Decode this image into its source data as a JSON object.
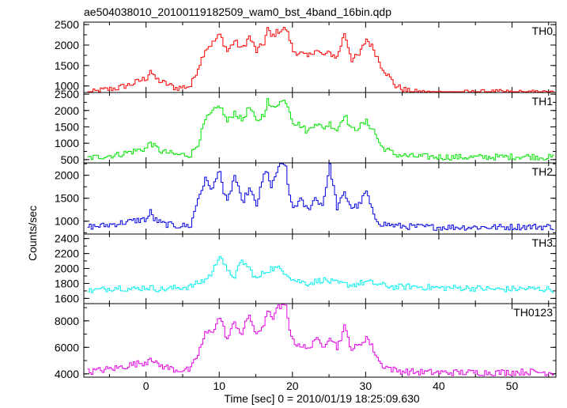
{
  "chart_data": {
    "type": "line",
    "title": "ae504038010_20100119182509_wam0_bst_4band_16bin.qdp",
    "xlabel": "Time [sec] 0 = 2010/01/19 18:25:09.630",
    "ylabel": "Counts/sec",
    "xlim": [
      -8.5,
      56
    ],
    "xticks": [
      0,
      10,
      20,
      30,
      40,
      50
    ],
    "grid": false,
    "panels": [
      {
        "name": "TH0",
        "color": "#ff0000",
        "ylim": [
          840,
          2560
        ],
        "yticks": [
          1000,
          1500,
          2000,
          2500
        ],
        "x": [
          -8,
          -6,
          -4,
          -2,
          0,
          0.5,
          1,
          2,
          4,
          6,
          7,
          8,
          9,
          10,
          10.5,
          11,
          12,
          13,
          14,
          15,
          16,
          16.5,
          17,
          18,
          19,
          19.5,
          20,
          21,
          22,
          23,
          24,
          25,
          26,
          27,
          28,
          29,
          30,
          31,
          32,
          34,
          36,
          40,
          44,
          48,
          52,
          55.5
        ],
        "y": [
          820,
          900,
          950,
          1050,
          1200,
          1400,
          1200,
          1100,
          950,
          1000,
          1450,
          1900,
          2050,
          2250,
          2050,
          1850,
          2100,
          1900,
          2200,
          1850,
          2050,
          2400,
          2200,
          2350,
          2400,
          2150,
          1850,
          1800,
          1700,
          1900,
          1750,
          1800,
          1700,
          2300,
          1650,
          1750,
          2150,
          1900,
          1500,
          1000,
          850,
          830,
          830,
          840,
          830,
          820
        ]
      },
      {
        "name": "TH1",
        "color": "#00e600",
        "ylim": [
          400,
          2550
        ],
        "yticks": [
          500,
          1000,
          1500,
          2000,
          2500
        ],
        "x": [
          -8,
          -6,
          -4,
          -2,
          0,
          0.5,
          1,
          2,
          4,
          6,
          7,
          8,
          9,
          10,
          10.5,
          11,
          12,
          13,
          14,
          15,
          16,
          16.5,
          17,
          18,
          19,
          19.5,
          20,
          21,
          22,
          23,
          24,
          25,
          26,
          27,
          28,
          29,
          30,
          31,
          32,
          34,
          36,
          40,
          44,
          48,
          52,
          55.5
        ],
        "y": [
          550,
          600,
          650,
          750,
          850,
          1050,
          900,
          750,
          650,
          650,
          1000,
          1700,
          1950,
          2150,
          1900,
          1650,
          1950,
          1700,
          2100,
          1650,
          1900,
          2300,
          2050,
          2250,
          2300,
          2000,
          1650,
          1550,
          1350,
          1650,
          1450,
          1600,
          1400,
          1900,
          1400,
          1500,
          1650,
          1400,
          900,
          650,
          600,
          580,
          570,
          580,
          600,
          560
        ]
      },
      {
        "name": "TH2",
        "color": "#0000e6",
        "ylim": [
          720,
          2270
        ],
        "yticks": [
          1000,
          1500,
          2000
        ],
        "x": [
          -8,
          -6,
          -4,
          -2,
          0,
          0.5,
          1,
          2,
          4,
          6,
          7,
          8,
          9,
          10,
          10.5,
          11,
          12,
          13,
          14,
          15,
          16,
          16.5,
          17,
          18,
          19,
          19.5,
          20,
          21,
          22,
          23,
          24,
          25,
          26,
          27,
          28,
          29,
          30,
          31,
          32,
          34,
          36,
          40,
          44,
          48,
          52,
          55.5
        ],
        "y": [
          880,
          900,
          950,
          1000,
          1050,
          1200,
          1050,
          950,
          900,
          900,
          1500,
          1900,
          1700,
          2150,
          1600,
          1400,
          2000,
          1400,
          1700,
          1350,
          2000,
          2100,
          1700,
          2200,
          2200,
          1500,
          1300,
          1450,
          1250,
          1500,
          1350,
          2200,
          1300,
          1600,
          1300,
          1350,
          1650,
          1100,
          950,
          900,
          880,
          870,
          870,
          870,
          880,
          880
        ]
      },
      {
        "name": "TH3",
        "color": "#00f0f0",
        "ylim": [
          1530,
          2460
        ],
        "yticks": [
          1600,
          1800,
          2000,
          2200,
          2400
        ],
        "x": [
          -8,
          -6,
          -4,
          -2,
          0,
          2,
          4,
          6,
          8,
          9,
          10,
          11,
          12,
          13,
          14,
          15,
          16,
          17,
          18,
          19,
          20,
          22,
          24,
          26,
          28,
          30,
          32,
          34,
          36,
          40,
          44,
          48,
          52,
          55.5
        ],
        "y": [
          1700,
          1720,
          1750,
          1720,
          1750,
          1720,
          1740,
          1760,
          1850,
          1950,
          2200,
          1950,
          1900,
          2100,
          2000,
          1850,
          1950,
          2000,
          2000,
          1950,
          1850,
          1800,
          1850,
          1800,
          1780,
          1820,
          1780,
          1750,
          1760,
          1740,
          1740,
          1720,
          1730,
          1720
        ]
      },
      {
        "name": "TH0123",
        "color": "#e600e6",
        "ylim": [
          3750,
          9300
        ],
        "yticks": [
          4000,
          6000,
          8000
        ],
        "x": [
          -8,
          -6,
          -4,
          -2,
          0,
          0.5,
          1,
          2,
          4,
          6,
          7,
          8,
          9,
          10,
          10.5,
          11,
          12,
          13,
          14,
          15,
          16,
          16.5,
          17,
          18,
          19,
          19.5,
          20,
          21,
          22,
          23,
          24,
          25,
          26,
          27,
          28,
          29,
          30,
          31,
          32,
          34,
          36,
          40,
          44,
          48,
          52,
          55.5
        ],
        "y": [
          4150,
          4300,
          4450,
          4700,
          4900,
          5400,
          4800,
          4600,
          4300,
          4300,
          5500,
          7000,
          7300,
          8300,
          7400,
          6600,
          7900,
          7000,
          8500,
          6800,
          7800,
          8900,
          8100,
          9000,
          9100,
          7500,
          6400,
          6200,
          5800,
          6700,
          6000,
          6900,
          6000,
          7500,
          5900,
          6100,
          6800,
          5800,
          4700,
          4250,
          4150,
          4100,
          4100,
          4100,
          4150,
          4100
        ]
      }
    ]
  }
}
